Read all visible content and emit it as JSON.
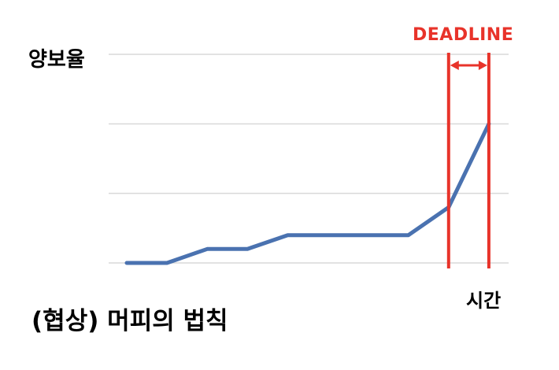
{
  "chart_data": {
    "type": "line",
    "ylabel": "양보율",
    "xlabel": "시간",
    "caption": "(협상) 머피의 법칙",
    "deadline_label": "DEADLINE",
    "ylim": [
      0,
      3
    ],
    "grid": true,
    "x": [
      0,
      1,
      2,
      3,
      4,
      5,
      6,
      7,
      8,
      9
    ],
    "values": [
      0,
      0,
      0.2,
      0.2,
      0.4,
      0.4,
      0.4,
      0.4,
      0.8,
      2
    ],
    "deadline_range": [
      8,
      9
    ],
    "colors": {
      "line": "#4a72b0",
      "deadline": "#e8332a",
      "grid": "#d9d9d9"
    }
  }
}
